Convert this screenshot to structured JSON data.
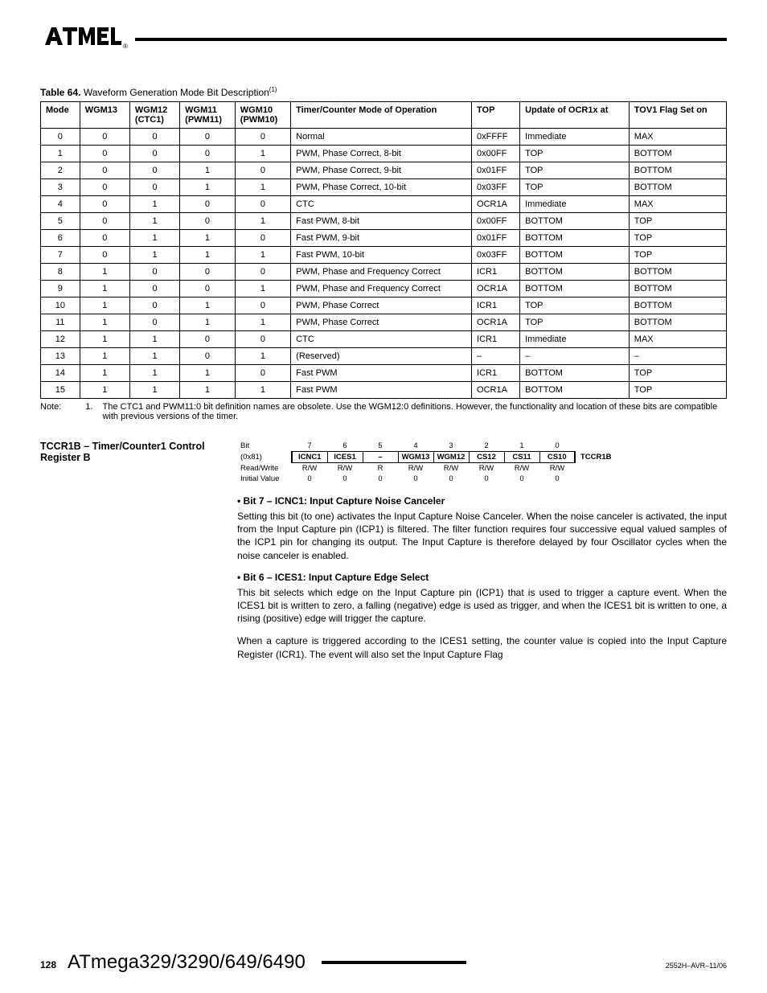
{
  "table64": {
    "caption_prefix": "Table 64.",
    "caption_text": "Waveform Generation Mode Bit Description",
    "caption_sup": "(1)",
    "columns": [
      "Mode",
      "WGM13",
      "WGM12 (CTC1)",
      "WGM11 (PWM11)",
      "WGM10 (PWM10)",
      "Timer/Counter Mode of Operation",
      "TOP",
      "Update of OCR1x at",
      "TOV1 Flag Set on"
    ],
    "rows": [
      [
        "0",
        "0",
        "0",
        "0",
        "0",
        "Normal",
        "0xFFFF",
        "Immediate",
        "MAX"
      ],
      [
        "1",
        "0",
        "0",
        "0",
        "1",
        "PWM, Phase Correct, 8-bit",
        "0x00FF",
        "TOP",
        "BOTTOM"
      ],
      [
        "2",
        "0",
        "0",
        "1",
        "0",
        "PWM, Phase Correct, 9-bit",
        "0x01FF",
        "TOP",
        "BOTTOM"
      ],
      [
        "3",
        "0",
        "0",
        "1",
        "1",
        "PWM, Phase Correct, 10-bit",
        "0x03FF",
        "TOP",
        "BOTTOM"
      ],
      [
        "4",
        "0",
        "1",
        "0",
        "0",
        "CTC",
        "OCR1A",
        "Immediate",
        "MAX"
      ],
      [
        "5",
        "0",
        "1",
        "0",
        "1",
        "Fast PWM, 8-bit",
        "0x00FF",
        "BOTTOM",
        "TOP"
      ],
      [
        "6",
        "0",
        "1",
        "1",
        "0",
        "Fast PWM, 9-bit",
        "0x01FF",
        "BOTTOM",
        "TOP"
      ],
      [
        "7",
        "0",
        "1",
        "1",
        "1",
        "Fast PWM, 10-bit",
        "0x03FF",
        "BOTTOM",
        "TOP"
      ],
      [
        "8",
        "1",
        "0",
        "0",
        "0",
        "PWM, Phase and Frequency Correct",
        "ICR1",
        "BOTTOM",
        "BOTTOM"
      ],
      [
        "9",
        "1",
        "0",
        "0",
        "1",
        "PWM, Phase and Frequency Correct",
        "OCR1A",
        "BOTTOM",
        "BOTTOM"
      ],
      [
        "10",
        "1",
        "0",
        "1",
        "0",
        "PWM, Phase Correct",
        "ICR1",
        "TOP",
        "BOTTOM"
      ],
      [
        "11",
        "1",
        "0",
        "1",
        "1",
        "PWM, Phase Correct",
        "OCR1A",
        "TOP",
        "BOTTOM"
      ],
      [
        "12",
        "1",
        "1",
        "0",
        "0",
        "CTC",
        "ICR1",
        "Immediate",
        "MAX"
      ],
      [
        "13",
        "1",
        "1",
        "0",
        "1",
        "(Reserved)",
        "–",
        "–",
        "–"
      ],
      [
        "14",
        "1",
        "1",
        "1",
        "0",
        "Fast PWM",
        "ICR1",
        "BOTTOM",
        "TOP"
      ],
      [
        "15",
        "1",
        "1",
        "1",
        "1",
        "Fast PWM",
        "OCR1A",
        "BOTTOM",
        "TOP"
      ]
    ],
    "col_align": [
      "c",
      "c",
      "c",
      "c",
      "c",
      "l",
      "l",
      "l",
      "l"
    ]
  },
  "note": {
    "label": "Note:",
    "num": "1.",
    "text": "The CTC1 and PWM11:0 bit definition names are obsolete. Use the WGM12:0 definitions. However, the functionality and location of these bits are compatible with previous versions of the timer."
  },
  "section": {
    "title": "TCCR1B – Timer/Counter1 Control Register B",
    "register": {
      "bit_row_label": "Bit",
      "bits": [
        "7",
        "6",
        "5",
        "4",
        "3",
        "2",
        "1",
        "0"
      ],
      "addr_label": "(0x81)",
      "names": [
        "ICNC1",
        "ICES1",
        "–",
        "WGM13",
        "WGM12",
        "CS12",
        "CS11",
        "CS10"
      ],
      "regname": "TCCR1B",
      "rw_label": "Read/Write",
      "rw": [
        "R/W",
        "R/W",
        "R",
        "R/W",
        "R/W",
        "R/W",
        "R/W",
        "R/W"
      ],
      "iv_label": "Initial Value",
      "iv": [
        "0",
        "0",
        "0",
        "0",
        "0",
        "0",
        "0",
        "0"
      ]
    },
    "b7_title": "•  Bit 7 – ICNC1: Input Capture Noise Canceler",
    "b7_text": "Setting this bit (to one) activates the Input Capture Noise Canceler. When the noise canceler is activated, the input from the Input Capture pin (ICP1) is filtered. The filter function requires four successive equal valued samples of the ICP1 pin for changing its output. The Input Capture is therefore delayed by four Oscillator cycles when the noise canceler is enabled.",
    "b6_title": "•  Bit 6 – ICES1: Input Capture Edge Select",
    "b6_text": "This bit selects which edge on the Input Capture pin (ICP1) that is used to trigger a capture event. When the ICES1 bit is written to zero, a falling (negative) edge is used as trigger, and when the ICES1 bit is written to one, a rising (positive) edge will trigger the capture.",
    "b6_text2": "When a capture is triggered according to the ICES1 setting, the counter value is copied into the Input Capture Register (ICR1). The event will also set the Input Capture Flag"
  },
  "footer": {
    "page": "128",
    "chip": "ATmega329/3290/649/6490",
    "doc": "2552H–AVR–11/06"
  }
}
